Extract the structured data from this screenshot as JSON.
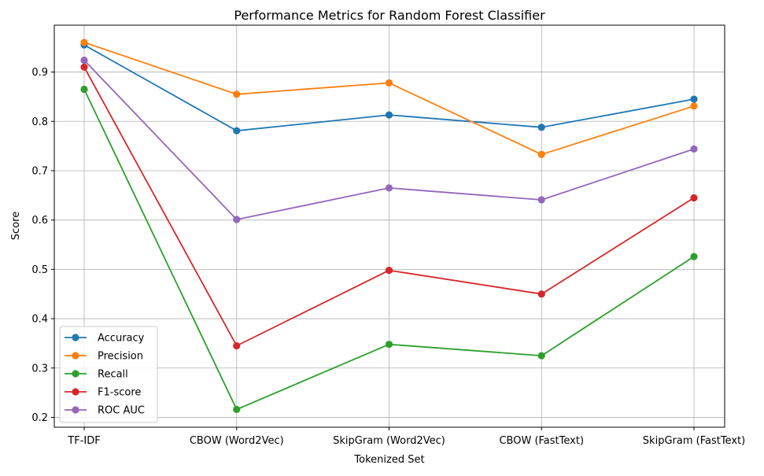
{
  "chart_data": {
    "type": "line",
    "title": "Performance Metrics for Random Forest Classifier",
    "xlabel": "Tokenized Set",
    "ylabel": "Score",
    "categories": [
      "TF-IDF",
      "CBOW (Word2Vec)",
      "SkipGram (Word2Vec)",
      "CBOW (FastText)",
      "SkipGram (FastText)"
    ],
    "ylim": [
      0.18,
      0.995
    ],
    "yticks": [
      "0.2",
      "0.3",
      "0.4",
      "0.5",
      "0.6",
      "0.7",
      "0.8",
      "0.9"
    ],
    "grid": true,
    "legend_position": "lower-left",
    "series": [
      {
        "name": "Accuracy",
        "color": "#1f77b4",
        "values": [
          0.955,
          0.781,
          0.813,
          0.788,
          0.845
        ]
      },
      {
        "name": "Precision",
        "color": "#ff7f0e",
        "values": [
          0.96,
          0.855,
          0.878,
          0.733,
          0.831
        ]
      },
      {
        "name": "Recall",
        "color": "#2ca02c",
        "values": [
          0.865,
          0.216,
          0.348,
          0.325,
          0.526
        ]
      },
      {
        "name": "F1-score",
        "color": "#d62728",
        "values": [
          0.91,
          0.345,
          0.498,
          0.45,
          0.645
        ]
      },
      {
        "name": "ROC AUC",
        "color": "#9467bd",
        "values": [
          0.924,
          0.601,
          0.665,
          0.641,
          0.744
        ]
      }
    ]
  }
}
